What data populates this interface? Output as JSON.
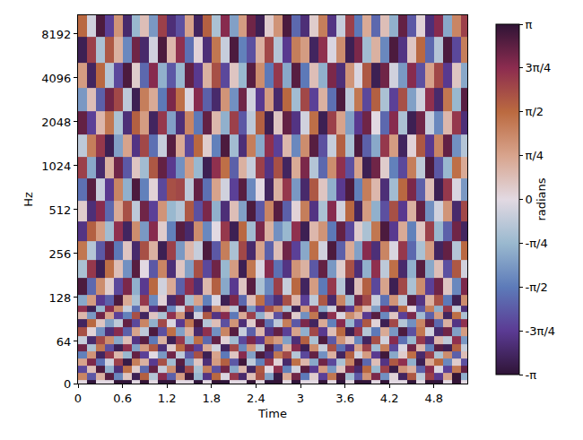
{
  "chart_data": {
    "type": "heatmap",
    "x_label": "Time",
    "y_label": "Hz",
    "log": "y",
    "xlim": [
      0,
      5.25
    ],
    "ylim": [
      0,
      11025
    ],
    "xticks": [
      0,
      0.6,
      1.2,
      1.8,
      2.4,
      3,
      3.6,
      4.2,
      4.8
    ],
    "yticks": [
      0,
      64,
      128,
      256,
      512,
      1024,
      2048,
      4096,
      8192
    ],
    "x": [
      0.06,
      0.18,
      0.3,
      0.42,
      0.54,
      0.66,
      0.78,
      0.9,
      1.02,
      1.14,
      1.26,
      1.38,
      1.5,
      1.62,
      1.74,
      1.86,
      1.98,
      2.1,
      2.22,
      2.34,
      2.46,
      2.58,
      2.7,
      2.82,
      2.94,
      3.06,
      3.18,
      3.3,
      3.42,
      3.54,
      3.66,
      3.78,
      3.9,
      4.02,
      4.14,
      4.26,
      4.38,
      4.5,
      4.62,
      4.74,
      4.86,
      4.98,
      5.1,
      5.22
    ],
    "y": [
      0,
      11,
      22,
      32,
      43,
      54,
      65,
      75,
      86,
      97,
      108,
      118,
      150,
      200,
      270,
      360,
      500,
      700,
      1000,
      1400,
      2000,
      2900,
      4200,
      6500,
      9500
    ],
    "cells": [
      [
        0,
        -3.1,
        0,
        0,
        3.1,
        -3.1,
        0,
        3.1,
        0,
        -3.1,
        3.1,
        0,
        0,
        -3.1,
        0,
        3.1,
        -3.1,
        0,
        0,
        3.1,
        0,
        -3.1,
        3.1,
        0,
        -3.1,
        0,
        0,
        3.1,
        0,
        -3.1,
        0,
        3.1,
        -3.1,
        0,
        3.1,
        0,
        0,
        -3.1,
        0,
        3.1,
        -3.1,
        0,
        3.1,
        0
      ],
      [
        1.2,
        -2.0,
        0.6,
        2.8,
        -1.4,
        0.3,
        -2.9,
        1.7,
        -0.5,
        2.4,
        -1.9,
        0.9,
        3.0,
        -0.8,
        -2.5,
        1.6,
        -0.1,
        2.2,
        -2.7,
        0.4,
        1.9,
        -1.1,
        -3.0,
        0.7,
        2.6,
        -1.6,
        0.2,
        -2.3,
        1.4,
        2.9,
        -0.7,
        -2.0,
        1.0,
        2.5,
        -1.3,
        0.1,
        -2.8,
        1.8,
        -0.4,
        2.1,
        -2.4,
        0.8,
        3.1,
        -0.9
      ],
      [
        -2.2,
        0.4,
        2.9,
        -0.9,
        -2.6,
        1.5,
        0.2,
        -1.8,
        2.7,
        -0.3,
        1.1,
        -2.9,
        2.0,
        -0.6,
        1.3,
        -2.1,
        2.6,
        -1.0,
        0.5,
        -2.8,
        1.8,
        0.0,
        2.3,
        -1.5,
        -0.2,
        2.8,
        -2.4,
        0.9,
        -1.2,
        0.3,
        2.5,
        -2.7,
        1.6,
        -0.8,
        2.1,
        -3.0,
        1.0,
        0.6,
        -1.9,
        2.4,
        -0.1,
        -2.3,
        1.4,
        2.7
      ],
      [
        0.8,
        2.5,
        -1.7,
        -0.2,
        2.1,
        -3.0,
        1.3,
        0.6,
        -2.4,
        1.9,
        -0.7,
        2.8,
        -1.2,
        0.3,
        -2.6,
        0.9,
        1.7,
        -2.0,
        3.0,
        -0.4,
        -1.5,
        2.2,
        0.1,
        -2.7,
        1.5,
        0.5,
        -1.0,
        2.6,
        -2.2,
        -0.6,
        1.2,
        2.9,
        -1.8,
        0.4,
        -2.5,
        1.8,
        2.3,
        -0.9,
        -2.9,
        0.7,
        1.6,
        -1.4,
        0.2,
        -2.1
      ],
      [
        -1.5,
        1.0,
        -2.8,
        2.2,
        0.5,
        -0.8,
        2.7,
        -2.3,
        0.0,
        -1.2,
        2.6,
        -0.4,
        -2.0,
        1.9,
        -2.9,
        0.8,
        -1.6,
        0.3,
        2.4,
        -1.1,
        2.9,
        -2.6,
        1.4,
        2.0,
        -0.5,
        -2.2,
        2.7,
        -1.3,
        0.6,
        -2.8,
        1.7,
        -0.2,
        0.9,
        -2.4,
        3.0,
        -1.0,
        0.2,
        1.5,
        -2.7,
        2.1,
        -0.6,
        1.1,
        -1.9,
        0.4
      ],
      [
        2.6,
        -0.6,
        1.4,
        -2.1,
        -2.9,
        2.3,
        -1.1,
        0.9,
        1.8,
        -2.6,
        0.2,
        1.6,
        2.5,
        -2.3,
        0.7,
        -0.2,
        -2.8,
        2.0,
        -1.4,
        1.0,
        -0.5,
        2.8,
        -1.9,
        0.6,
        2.4,
        -2.9,
        1.1,
        -0.3,
        1.9,
        -1.7,
        -2.5,
        0.8,
        2.1,
        -0.7,
        1.3,
        -2.2,
        -0.1,
        2.6,
        0.5,
        -1.5,
        2.8,
        -2.9,
        1.7,
        -0.3
      ],
      [
        -0.3,
        -2.7,
        2.0,
        1.1,
        -1.0,
        0.4,
        -2.5,
        2.8,
        -1.6,
        0.6,
        -2.9,
        2.2,
        -0.9,
        1.5,
        -1.8,
        2.7,
        0.1,
        -0.7,
        -2.2,
        2.5,
        -2.4,
        1.3,
        0.9,
        -1.1,
        -2.6,
        1.7,
        -0.6,
        2.9,
        -2.0,
        1.0,
        0.3,
        -1.4,
        -2.8,
        1.9,
        -0.2,
        2.4,
        -1.7,
        -0.8,
        2.2,
        -2.6,
        0.5,
        -0.4,
        2.3,
        -1.2
      ],
      [
        1.9,
        0.1,
        -1.3,
        -2.6,
        2.4,
        -1.9,
        0.8,
        -0.4,
        2.9,
        -2.1,
        1.5,
        -1.1,
        0.6,
        -2.7,
        2.3,
        -1.3,
        1.2,
        2.8,
        -0.3,
        -1.9,
        0.5,
        -2.5,
        2.7,
        -2.3,
        0.8,
        -0.9,
        2.0,
        -2.4,
        0.4,
        1.6,
        -2.9,
        2.2,
        -0.5,
        -1.6,
        0.7,
        -1.2,
        2.9,
        -2.1,
        1.4,
        -0.2,
        -2.7,
        2.6,
        -1.1,
        0.9
      ],
      [
        -2.8,
        1.6,
        0.3,
        -1.1,
        -0.4,
        2.7,
        -2.2,
        1.2,
        -0.9,
        2.0,
        -0.1,
        -2.4,
        1.4,
        2.9,
        -0.5,
        0.4,
        -2.1,
        1.0,
        -2.6,
        0.2,
        2.7,
        -1.7,
        -0.4,
        1.3,
        -2.0,
        2.5,
        -2.8,
        0.7,
        -1.5,
        2.4,
        -0.8,
        -2.2,
        1.8,
        0.1,
        -2.9,
        2.0,
        -0.5,
        -1.3,
        1.2,
        2.7,
        -1.8,
        0.6,
        -2.5,
        2.3
      ],
      [
        0.5,
        -1.2,
        2.6,
        0.8,
        -2.3,
        -1.5,
        1.9,
        -2.8,
        0.3,
        -0.6,
        2.3,
        1.0,
        -2.9,
        -0.2,
        1.8,
        -2.5,
        2.4,
        -1.6,
        0.7,
        2.1,
        -0.9,
        0.3,
        -2.1,
        2.7,
        0.2,
        -1.3,
        1.4,
        -2.9,
        2.3,
        -0.1,
        1.1,
        0.6,
        -2.4,
        2.8,
        -1.4,
        0.3,
        -2.3,
        2.5,
        -0.7,
        -1.9,
        0.9,
        -2.8,
        1.5,
        -0.6
      ],
      [
        2.3,
        -2.9,
        -0.8,
        2.4,
        1.1,
        -0.3,
        -1.7,
        0.5,
        -2.5,
        2.8,
        -1.4,
        -0.2,
        2.1,
        -1.3,
        -2.8,
        1.1,
        0.6,
        -0.4,
        2.9,
        -1.2,
        -2.3,
        1.9,
        1.2,
        -0.6,
        -2.9,
        0.9,
        2.2,
        -1.0,
        -0.2,
        2.8,
        -2.4,
        1.3,
        0.4,
        -1.1,
        2.4,
        -2.7,
        1.6,
        0.0,
        -2.0,
        1.3,
        -0.9,
        2.2,
        -0.3,
        -2.6
      ],
      [
        -1.0,
        0.9,
        -2.4,
        -1.9,
        2.9,
        0.7,
        -0.6,
        2.2,
        -1.4,
        0.1,
        -2.7,
        2.6,
        -0.7,
        0.8,
        -1.5,
        -0.1,
        -2.9,
        2.5,
        -1.8,
        0.4,
        1.5,
        -2.0,
        -2.6,
        1.9,
        0.5,
        -2.3,
        -0.4,
        1.8,
        -2.7,
        1.2,
        -0.7,
        2.6,
        2.0,
        -0.3,
        -1.7,
        1.0,
        -0.4,
        2.8,
        -2.5,
        0.6,
        1.9,
        -1.6,
        -2.9,
        1.1
      ],
      [
        2.9,
        -1.8,
        1.1,
        0.2,
        -2.2,
        2.5,
        -0.9,
        -2.4,
        1.6,
        -0.2,
        0.7,
        -1.9,
        2.3,
        -2.6,
        0.5,
        1.7,
        -1.0,
        -2.4,
        0.3,
        2.8,
        -0.6,
        -1.4,
        2.1,
        -0.3,
        1.6,
        -2.8,
        0.9,
        -1.6,
        2.2,
        -0.5,
        -2.9,
        0.4,
        1.7,
        -2.2,
        0.8,
        -2.9,
        2.0,
        -0.6,
        1.1,
        -2.3,
        2.6,
        0.3,
        -1.4,
        2.5
      ],
      [
        -0.6,
        2.2,
        -2.9,
        1.5,
        0.4,
        -1.3,
        2.8,
        0.0,
        -2.0,
        1.2,
        -2.6,
        0.3,
        -1.1,
        1.9,
        -2.2,
        2.6,
        -0.8,
        0.9,
        -2.9,
        1.4,
        -0.1,
        2.4,
        -1.7,
        -2.5,
        1.0,
        0.6,
        -2.0,
        2.7,
        -1.2,
        0.2,
        1.9,
        -2.6,
        -0.9,
        2.3,
        -0.4,
        1.5,
        -2.7,
        -0.9,
        2.8,
        -1.0,
        0.4,
        -2.1,
        1.8,
        -0.2
      ],
      [
        1.4,
        -0.5,
        -2.0,
        2.7,
        -1.6,
        0.3,
        -2.7,
        1.9,
        0.6,
        -2.9,
        2.1,
        -1.2,
        0.5,
        -0.3,
        2.9,
        -2.0,
        1.3,
        -0.6,
        2.0,
        -2.7,
        0.8,
        -1.9,
        0.4,
        2.6,
        -2.3,
        -1.0,
        1.5,
        -0.2,
        2.9,
        -1.9,
        0.7,
        -1.1,
        2.4,
        -2.6,
        1.2,
        -0.1,
        2.2,
        -1.8,
        -0.6,
        0.9,
        -2.8,
        2.7,
        -0.5,
        1.6
      ],
      [
        -2.5,
        1.7,
        0.9,
        -0.7,
        2.3,
        -2.8,
        1.1,
        -1.2,
        2.4,
        0.2,
        -1.5,
        2.8,
        -2.7,
        1.1,
        -1.4,
        0.0,
        2.2,
        -2.9,
        1.6,
        -0.7,
        2.5,
        0.6,
        -1.3,
        -0.8,
        2.3,
        -2.9,
        0.5,
        1.0,
        -1.6,
        2.7,
        -2.2,
        0.2,
        -0.6,
        1.4,
        2.9,
        -2.4,
        0.7,
        -1.5,
        0.3,
        2.1,
        -0.8,
        -1.9,
        2.6,
        -2.8
      ],
      [
        0.2,
        -2.6,
        2.4,
        -1.8,
        0.7,
        1.9,
        -0.4,
        2.6,
        -2.3,
        1.0,
        -0.8,
        -0.5,
        1.8,
        -2.1,
        2.5,
        -0.9,
        -2.6,
        0.4,
        -1.1,
        2.9,
        -2.0,
        1.2,
        2.8,
        -1.9,
        0.1,
        1.3,
        -2.5,
        -0.6,
        2.4,
        -0.2,
        1.6,
        -2.8,
        0.9,
        -0.9,
        -2.1,
        1.9,
        -2.4,
        0.6,
        2.7,
        -1.3,
        -0.2,
        1.0,
        -2.7,
        2.0
      ],
      [
        -1.7,
        2.8,
        -0.3,
        -2.4,
        1.2,
        -0.9,
        2.9,
        -1.5,
        0.1,
        -2.2,
        1.9,
        2.0,
        -0.4,
        2.7,
        -1.7,
        0.8,
        -0.2,
        -2.3,
        2.8,
        -1.4,
        0.0,
        -2.8,
        0.6,
        2.2,
        -1.2,
        -2.7,
        1.8,
        0.3,
        -0.9,
        -2.4,
        2.9,
        -1.5,
        1.3,
        0.5,
        -2.6,
        -0.7,
        1.6,
        2.5,
        -1.9,
        0.4,
        -2.9,
        2.2,
        -0.1,
        -1.2
      ],
      [
        2.1,
        -1.0,
        -2.7,
        0.6,
        2.6,
        -2.0,
        0.3,
        -0.7,
        1.8,
        2.7,
        -2.4,
        -1.3,
        0.9,
        -0.8,
        -2.9,
        2.3,
        1.5,
        -1.9,
        0.6,
        -0.3,
        2.1,
        -2.5,
        1.9,
        -2.8,
        0.7,
        2.5,
        -0.5,
        -1.8,
        1.1,
        2.3,
        -2.1,
        0.8,
        -2.9,
        2.6,
        0.2,
        -1.5,
        -2.2,
        1.3,
        -0.4,
        2.9,
        -2.0,
        -0.8,
        1.5,
        0.7
      ],
      [
        -0.4,
        1.3,
        2.2,
        -2.9,
        -1.1,
        0.8,
        -2.5,
        2.0,
        -1.7,
        -0.3,
        2.8,
        0.7,
        -2.2,
        1.6,
        0.2,
        -1.5,
        2.9,
        -0.7,
        -2.6,
        1.3,
        -1.0,
        2.3,
        -2.3,
        0.5,
        -1.4,
        1.1,
        2.8,
        -2.1,
        -0.3,
        1.7,
        -0.6,
        2.9,
        -1.9,
        -1.0,
        2.2,
        0.9,
        -2.8,
        0.1,
        1.8,
        -2.4,
        1.2,
        2.7,
        -1.3,
        -0.5
      ],
      [
        2.7,
        -2.3,
        0.5,
        1.4,
        -0.6,
        -2.6,
        1.7,
        0.9,
        -2.8,
        2.2,
        -1.1,
        -2.6,
        1.2,
        -1.6,
        2.7,
        0.5,
        -0.9,
        2.1,
        -2.0,
        -0.4,
        1.7,
        -2.9,
        0.3,
        2.7,
        -2.5,
        -0.2,
        1.5,
        -2.9,
        2.1,
        0.8,
        -1.1,
        -2.4,
        2.6,
        0.0,
        -1.8,
        2.4,
        -0.6,
        -2.9,
        2.6,
        -0.3,
        -1.4,
        0.5,
        2.2,
        -2.6
      ],
      [
        -1.2,
        0.4,
        -1.9,
        2.6,
        2.0,
        -0.4,
        -2.9,
        1.3,
        0.7,
        -1.6,
        2.5,
        1.5,
        -0.1,
        2.4,
        -1.9,
        -2.7,
        1.0,
        -1.3,
        2.6,
        -0.2,
        -2.4,
        0.9,
        -2.7,
        1.6,
        -0.7,
        2.0,
        -2.3,
        0.6,
        -1.7,
        2.9,
        -0.4,
        1.4,
        -2.2,
        1.7,
        -0.6,
        -2.3,
        1.9,
        -1.1,
        -0.2,
        2.3,
        -2.7,
        1.4,
        -0.8,
        2.8
      ],
      [
        0.9,
        -2.8,
        1.6,
        -0.5,
        -2.2,
        2.9,
        0.2,
        -1.8,
        2.4,
        -0.9,
        -2.0,
        -0.8,
        2.7,
        -2.4,
        0.6,
        1.9,
        -2.2,
        0.3,
        -0.8,
        2.8,
        1.1,
        -1.6,
        2.2,
        -1.0,
        2.8,
        -1.6,
        0.4,
        -0.9,
        2.5,
        -2.6,
        1.0,
        -0.1,
        1.8,
        -2.9,
        2.6,
        -0.2,
        -1.2,
        2.4,
        -2.1,
        0.8,
        2.0,
        -2.4,
        0.3,
        -1.0
      ],
      [
        -2.9,
        2.1,
        -0.6,
        1.8,
        0.6,
        -1.4,
        2.6,
        -2.7,
        -0.2,
        2.9,
        0.5,
        2.3,
        -1.7,
        0.1,
        -2.6,
        1.4,
        -0.3,
        2.9,
        -1.5,
        -2.1,
        0.6,
        2.0,
        -0.5,
        -2.4,
        1.3,
        0.9,
        -2.8,
        2.3,
        -0.1,
        1.1,
        -2.9,
        2.5,
        -0.7,
        0.6,
        -1.4,
        2.9,
        -2.5,
        0.3,
        1.6,
        -1.8,
        -0.5,
        2.9,
        -2.2,
        1.3
      ],
      [
        1.6,
        -0.2,
        2.9,
        -2.3,
        1.0,
        -2.7,
        -0.8,
        0.4,
        -1.2,
        2.1,
        -2.6,
        -2.1,
        0.8,
        -2.8,
        1.7,
        -0.6,
        2.4,
        -1.1,
        0.9,
        2.6,
        -2.9,
        0.2,
        1.0,
        2.9,
        -1.8,
        -2.6,
        0.2,
        1.3,
        -2.5,
        -0.3,
        2.1,
        -1.6,
        0.7,
        -1.8,
        0.4,
        -0.9,
        2.7,
        -2.0,
        0.1,
        -2.6,
        2.4,
        -1.0,
        1.2,
        2.1
      ]
    ],
    "colorbar": {
      "label": "radians",
      "range": [
        -3.14159,
        3.14159
      ],
      "ticks": [
        {
          "value": -3.14159,
          "label": "-π"
        },
        {
          "value": -2.35619,
          "label": "-3π/4"
        },
        {
          "value": -1.5708,
          "label": "-π/2"
        },
        {
          "value": -0.7854,
          "label": "-π/4"
        },
        0,
        {
          "value": 0.7854,
          "label": "π/4"
        },
        {
          "value": 1.5708,
          "label": "π/2"
        },
        {
          "value": 2.35619,
          "label": "3π/4"
        },
        {
          "value": 3.14159,
          "label": "π"
        }
      ]
    }
  }
}
